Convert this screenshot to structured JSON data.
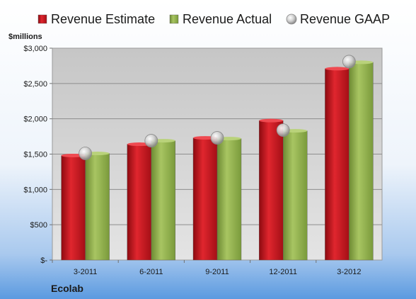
{
  "chart_data": {
    "type": "bar",
    "categories": [
      "3-2011",
      "6-2011",
      "9-2011",
      "12-2011",
      "3-2012"
    ],
    "series": [
      {
        "name": "Revenue Estimate",
        "kind": "bar",
        "color": "#c8141c",
        "values": [
          1480,
          1640,
          1730,
          1975,
          2710
        ]
      },
      {
        "name": "Revenue Actual",
        "kind": "bar",
        "color": "#8fae4a",
        "values": [
          1510,
          1690,
          1720,
          1830,
          2800
        ]
      },
      {
        "name": "Revenue GAAP",
        "kind": "marker",
        "color": "#c8c8c8",
        "values": [
          1510,
          1690,
          1730,
          1840,
          2810
        ]
      }
    ],
    "ylabel": "$millions",
    "yticks": [
      {
        "value": 0,
        "label": "$-"
      },
      {
        "value": 500,
        "label": "$500"
      },
      {
        "value": 1000,
        "label": "$1,000"
      },
      {
        "value": 1500,
        "label": "$1,500"
      },
      {
        "value": 2000,
        "label": "$2,000"
      },
      {
        "value": 2500,
        "label": "$2,500"
      },
      {
        "value": 3000,
        "label": "$3,000"
      }
    ],
    "ylim": [
      0,
      3000
    ],
    "grid": true,
    "legend": "top",
    "footer": "Ecolab"
  }
}
